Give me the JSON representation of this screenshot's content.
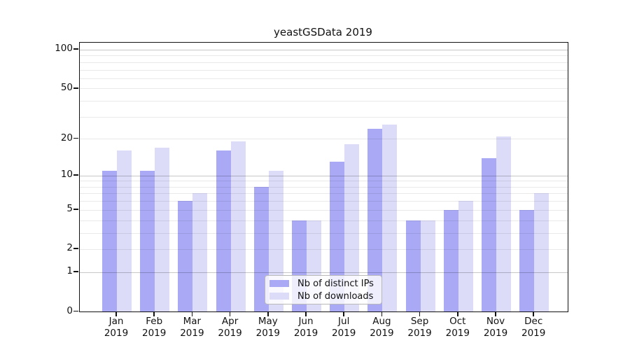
{
  "title": "yeastGSData 2019",
  "chart_data": {
    "type": "bar",
    "title": "yeastGSData 2019",
    "categories": [
      "Jan 2019",
      "Feb 2019",
      "Mar 2019",
      "Apr 2019",
      "May 2019",
      "Jun 2019",
      "Jul 2019",
      "Aug 2019",
      "Sep 2019",
      "Oct 2019",
      "Nov 2019",
      "Dec 2019"
    ],
    "x_tick_months": [
      "Jan",
      "Feb",
      "Mar",
      "Apr",
      "May",
      "Jun",
      "Jul",
      "Aug",
      "Sep",
      "Oct",
      "Nov",
      "Dec"
    ],
    "x_tick_year": "2019",
    "series": [
      {
        "name": "Nb of distinct IPs",
        "color": "#a9a9f6",
        "values": [
          11,
          11,
          6,
          16,
          8,
          4,
          13,
          24,
          4,
          5,
          14,
          5
        ]
      },
      {
        "name": "Nb of downloads",
        "color": "#dcdcf9",
        "values": [
          16,
          17,
          7,
          19,
          11,
          4,
          18,
          26,
          4,
          6,
          21,
          7
        ]
      }
    ],
    "y_scale": "log10(value+1)",
    "y_tick_values": [
      0,
      1,
      2,
      5,
      10,
      20,
      50,
      100
    ],
    "ylim": [
      0,
      115
    ],
    "grid": {
      "minor_values": [
        2,
        3,
        4,
        5,
        6,
        7,
        8,
        9,
        20,
        30,
        40,
        50,
        60,
        70,
        80,
        90
      ],
      "major_values": [
        1,
        10,
        100
      ],
      "drawn_over_bars": true
    },
    "legend_position": "bottom-center",
    "xlabel": "",
    "ylabel": ""
  },
  "colors": {
    "background": "#ffffff",
    "spine": "#121212",
    "bar_ips": "#a9a9f6",
    "bar_downloads": "#dcdcf9",
    "legend_border": "#b9b9b9"
  }
}
